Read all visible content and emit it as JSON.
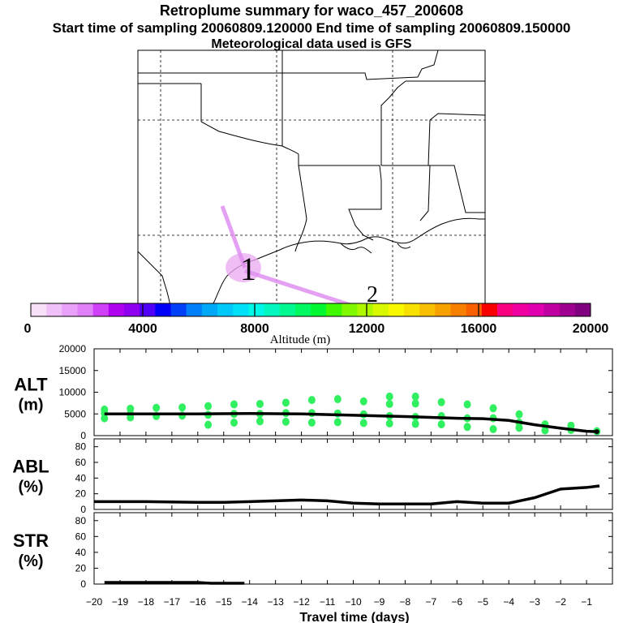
{
  "header": {
    "title": "Retroplume summary for waco_457_200608",
    "sampling": "Start time of sampling 20060809.120000     End time of sampling 20060809.150000",
    "meteo": "Meteorological data used is GFS"
  },
  "map": {
    "plume_color": "#e090f0",
    "markers": [
      "1",
      "2"
    ],
    "land_line_color": "#000000"
  },
  "colorbar": {
    "label": "Altitude (m)",
    "tick_labels": [
      "0",
      "4000",
      "8000",
      "12000",
      "16000",
      "20000"
    ],
    "range": [
      0,
      20000
    ],
    "colors": [
      "#f8e0f8",
      "#f0c0f8",
      "#e8a0f8",
      "#e080f8",
      "#d040f8",
      "#b000f0",
      "#9000f0",
      "#5000f8",
      "#0000f8",
      "#0040f8",
      "#0080f8",
      "#00a8f8",
      "#00c8f8",
      "#00e0f8",
      "#00f8e8",
      "#00f8c0",
      "#00f890",
      "#00f860",
      "#00f830",
      "#40f800",
      "#80f800",
      "#b0f800",
      "#d8f800",
      "#f8f800",
      "#f8e000",
      "#f8c000",
      "#f8a000",
      "#f88000",
      "#f86000",
      "#f80000",
      "#f80080",
      "#f000a0",
      "#e000b0",
      "#c000a0",
      "#a00090",
      "#800080"
    ]
  },
  "chart_data": [
    {
      "type": "line",
      "panel": "ALT",
      "ylabel": "ALT\n(m)",
      "ylabel_lines": [
        "ALT",
        "(m)"
      ],
      "ylim": [
        0,
        20000
      ],
      "yticks": [
        0,
        5000,
        10000,
        15000,
        20000
      ],
      "ytick_labels": [
        "0",
        "5000",
        "10000",
        "15000",
        "20000"
      ],
      "x": [
        -19.6,
        -18,
        -16,
        -14,
        -12,
        -10,
        -8,
        -6,
        -5,
        -4,
        -3,
        -2,
        -1,
        -0.6
      ],
      "series": [
        {
          "name": "mean altitude",
          "values": [
            5000,
            5000,
            5000,
            5100,
            5000,
            4700,
            4400,
            4000,
            3900,
            3500,
            2500,
            1700,
            1000,
            900
          ]
        }
      ],
      "scatter": {
        "color": "#30f060",
        "points": [
          [
            -19.6,
            6000
          ],
          [
            -19.6,
            4000
          ],
          [
            -19.6,
            5200
          ],
          [
            -18.6,
            6200
          ],
          [
            -18.6,
            4200
          ],
          [
            -18.6,
            5000
          ],
          [
            -17.6,
            6400
          ],
          [
            -17.6,
            4500
          ],
          [
            -16.6,
            6500
          ],
          [
            -16.6,
            4600
          ],
          [
            -15.6,
            6800
          ],
          [
            -15.6,
            4800
          ],
          [
            -15.6,
            2500
          ],
          [
            -14.6,
            7200
          ],
          [
            -14.6,
            5000
          ],
          [
            -14.6,
            3000
          ],
          [
            -13.6,
            7300
          ],
          [
            -13.6,
            5000
          ],
          [
            -13.6,
            3300
          ],
          [
            -12.6,
            7600
          ],
          [
            -12.6,
            5200
          ],
          [
            -12.6,
            3200
          ],
          [
            -11.6,
            8200
          ],
          [
            -11.6,
            5200
          ],
          [
            -11.6,
            3000
          ],
          [
            -10.6,
            8400
          ],
          [
            -10.6,
            5100
          ],
          [
            -10.6,
            3100
          ],
          [
            -9.6,
            7900
          ],
          [
            -9.6,
            4900
          ],
          [
            -9.6,
            2900
          ],
          [
            -8.6,
            9000
          ],
          [
            -8.6,
            7300
          ],
          [
            -8.6,
            4500
          ],
          [
            -8.6,
            2800
          ],
          [
            -7.6,
            9000
          ],
          [
            -7.6,
            7400
          ],
          [
            -7.6,
            4300
          ],
          [
            -7.6,
            2700
          ],
          [
            -6.6,
            7700
          ],
          [
            -6.6,
            4500
          ],
          [
            -6.6,
            2600
          ],
          [
            -5.6,
            7200
          ],
          [
            -5.6,
            4000
          ],
          [
            -5.6,
            2000
          ],
          [
            -4.6,
            6300
          ],
          [
            -4.6,
            4000
          ],
          [
            -4.6,
            1500
          ],
          [
            -3.6,
            4900
          ],
          [
            -3.6,
            3000
          ],
          [
            -3.6,
            1800
          ],
          [
            -2.6,
            2600
          ],
          [
            -2.6,
            1200
          ],
          [
            -1.6,
            2300
          ],
          [
            -1.6,
            1300
          ],
          [
            -0.6,
            1000
          ]
        ]
      }
    },
    {
      "type": "line",
      "panel": "ABL",
      "ylabel_lines": [
        "ABL",
        "(%)"
      ],
      "ylim": [
        0,
        90
      ],
      "yticks": [
        0,
        20,
        40,
        60,
        80
      ],
      "ytick_labels": [
        "0",
        "20",
        "40",
        "60",
        "80"
      ],
      "x": [
        -20,
        -18,
        -16,
        -15,
        -14,
        -13,
        -12,
        -11,
        -10,
        -9,
        -8,
        -7,
        -6,
        -5,
        -4,
        -3,
        -2,
        -1,
        -0.5
      ],
      "series": [
        {
          "name": "ABL fraction",
          "values": [
            10,
            10,
            9,
            9,
            10,
            11,
            12,
            11,
            8,
            7,
            7,
            7,
            10,
            8,
            8,
            15,
            26,
            28,
            30
          ]
        }
      ]
    },
    {
      "type": "line",
      "panel": "STR",
      "ylabel_lines": [
        "STR",
        "(%)"
      ],
      "ylim": [
        0,
        90
      ],
      "yticks": [
        0,
        20,
        40,
        60,
        80
      ],
      "ytick_labels": [
        "0",
        "20",
        "40",
        "60",
        "80"
      ],
      "x": [
        -19.6,
        -18,
        -16,
        -15.5,
        -15,
        -14.2
      ],
      "series": [
        {
          "name": "stratospheric fraction",
          "values": [
            2,
            2,
            2,
            1,
            1,
            1
          ]
        }
      ]
    }
  ],
  "xaxis": {
    "label": "Travel time (days)",
    "range": [
      -20,
      0
    ],
    "ticks": [
      -20,
      -19,
      -18,
      -17,
      -16,
      -15,
      -14,
      -13,
      -12,
      -11,
      -10,
      -9,
      -8,
      -7,
      -6,
      -5,
      -4,
      -3,
      -2,
      -1
    ],
    "tick_labels": [
      "−20",
      "−19",
      "−18",
      "−17",
      "−16",
      "−15",
      "−14",
      "−13",
      "−12",
      "−11",
      "−10",
      "−9",
      "−8",
      "−7",
      "−6",
      "−5",
      "−4",
      "−3",
      "−2",
      "−1"
    ]
  }
}
